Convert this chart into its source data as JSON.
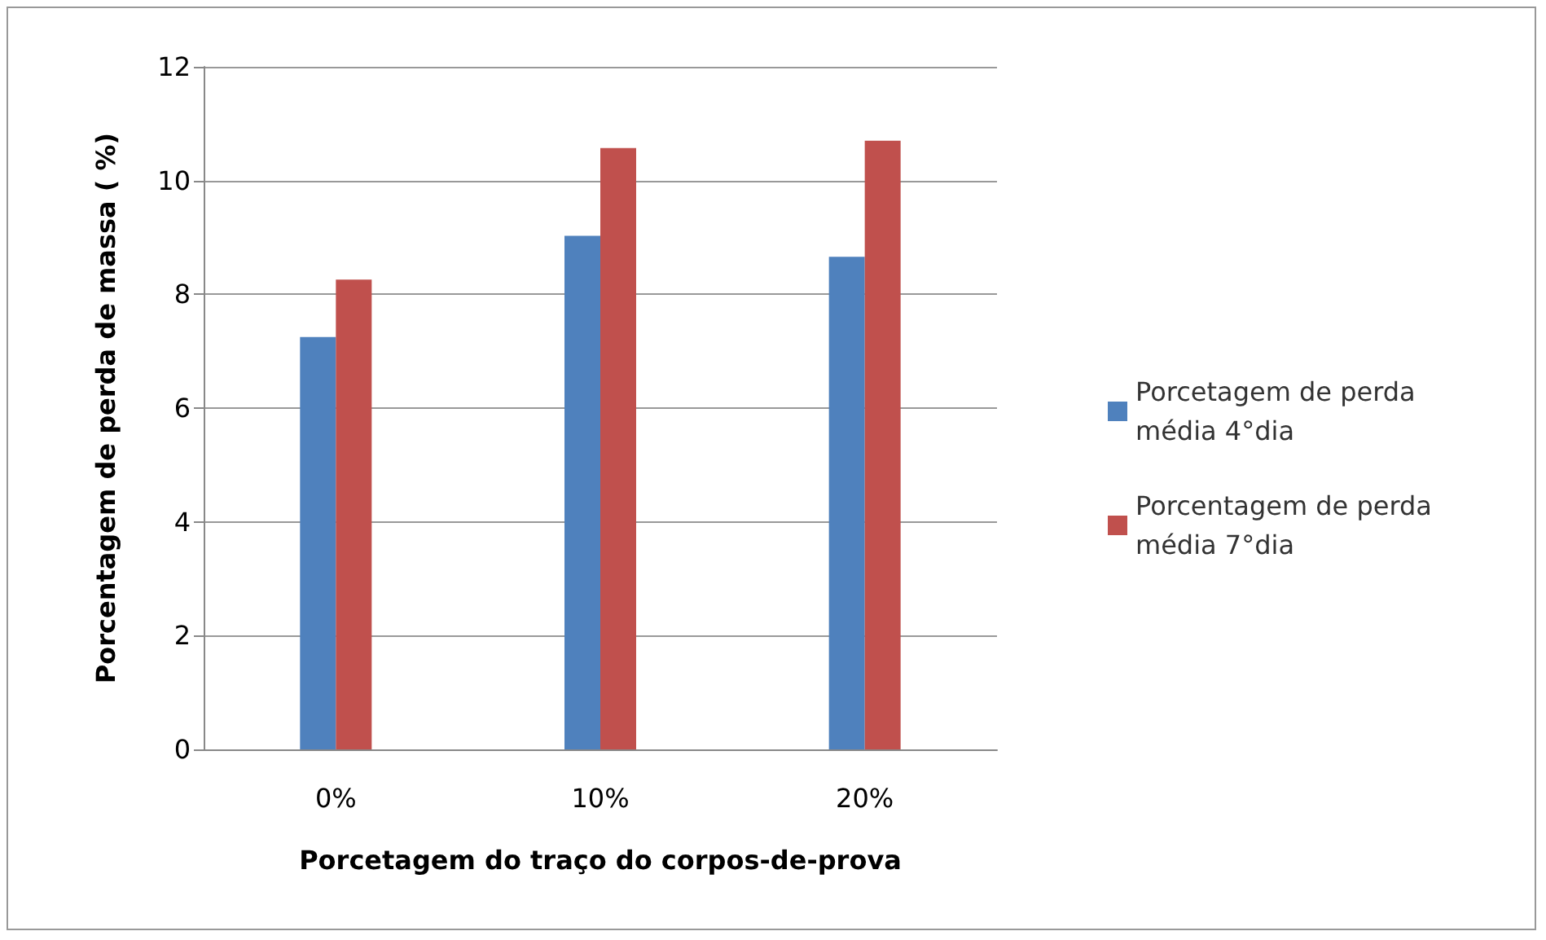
{
  "chart_data": {
    "type": "bar",
    "xlabel": "Porcetagem do traço do corpos-de-prova",
    "ylabel": "Porcentagem de perda de massa ( %)",
    "categories": [
      "0%",
      "10%",
      "20%"
    ],
    "series": [
      {
        "name": "Porcetagem de perda média 4°dia",
        "color": "#4f81bd",
        "values": [
          7.25,
          9.03,
          8.66
        ]
      },
      {
        "name": "Porcentagem de perda média 7°dia",
        "color": "#c0504d",
        "values": [
          8.26,
          10.57,
          10.7
        ]
      }
    ],
    "ylim": [
      0,
      12
    ],
    "yticks": [
      0,
      2,
      4,
      6,
      8,
      10,
      12
    ],
    "grid": "y",
    "legend": "right"
  }
}
